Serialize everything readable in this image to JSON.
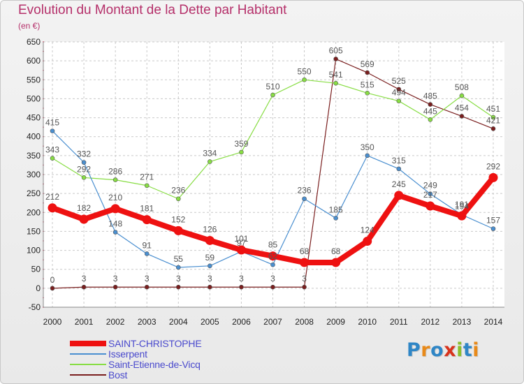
{
  "title": "Evolution du Montant de la Dette par Habitant",
  "unit_label": "(en €)",
  "logo_text": "Proxiti",
  "colors": {
    "title": "#b5306a",
    "legend_text": "#4a4acd",
    "axis_text": "#222222",
    "value_text": "#555555",
    "grid": "#c9c9c9",
    "logo": [
      "#2f86c6",
      "#e88a1a",
      "#2f86c6",
      "#d8331c",
      "#8bbf2c",
      "#2f86c6",
      "#e88a1a"
    ]
  },
  "chart_data": {
    "type": "line",
    "title": "Evolution du Montant de la Dette par Habitant",
    "ylabel": "(en €)",
    "xlabel": "",
    "x": [
      "2000",
      "2001",
      "2002",
      "2003",
      "2004",
      "2005",
      "2006",
      "2007",
      "2008",
      "2009",
      "2010",
      "2011",
      "2012",
      "2013",
      "2014"
    ],
    "ylim": [
      -50,
      650
    ],
    "yticks": [
      -50,
      0,
      50,
      100,
      150,
      200,
      250,
      300,
      350,
      400,
      450,
      500,
      550,
      600,
      650
    ],
    "grid": "horizontal dashed",
    "legend_position": "bottom-left",
    "series": [
      {
        "name": "SAINT-CHRISTOPHE",
        "color": "#ee1111",
        "width": 8,
        "point_radius": 6,
        "values": [
          212,
          182,
          210,
          181,
          152,
          126,
          101,
          85,
          68,
          68,
          124,
          245,
          217,
          191,
          292
        ]
      },
      {
        "name": "Isserpent",
        "color": "#4a8fd0",
        "width": 1.2,
        "point_radius": 3,
        "values": [
          415,
          332,
          148,
          91,
          55,
          59,
          97,
          62,
          236,
          185,
          350,
          315,
          249,
          194,
          157
        ]
      },
      {
        "name": "Saint-Etienne-de-Vicq",
        "color": "#88dd44",
        "width": 1.2,
        "point_radius": 3,
        "values": [
          343,
          292,
          286,
          271,
          236,
          334,
          359,
          510,
          550,
          541,
          515,
          494,
          445,
          508,
          451
        ]
      },
      {
        "name": "Bost",
        "color": "#7a1e1e",
        "width": 1.2,
        "point_radius": 3,
        "values": [
          0,
          3,
          3,
          3,
          3,
          3,
          3,
          3,
          3,
          605,
          569,
          525,
          485,
          454,
          421
        ]
      }
    ],
    "data_labels": [
      {
        "series": 0,
        "text": [
          "212",
          "182",
          "210",
          "181",
          "152",
          "126",
          "101",
          "85",
          "68",
          "68",
          "124",
          "245",
          "217",
          "191",
          "292"
        ]
      },
      {
        "series": 1,
        "text": [
          "415",
          "332",
          "148",
          "91",
          "55",
          "59",
          "97",
          "62",
          "236",
          "185",
          "350",
          "315",
          "249",
          "194",
          "157"
        ]
      },
      {
        "series": 2,
        "text": [
          "343",
          "292",
          "286",
          "271",
          "236",
          "334",
          "359",
          "510",
          "550",
          "541",
          "515",
          "494",
          "445",
          "508",
          "451"
        ]
      },
      {
        "series": 3,
        "text": [
          "0",
          "3",
          "3",
          "3",
          "3",
          "3",
          "3",
          "3",
          "3",
          "605",
          "569",
          "525",
          "485",
          "454",
          "421"
        ]
      }
    ]
  }
}
